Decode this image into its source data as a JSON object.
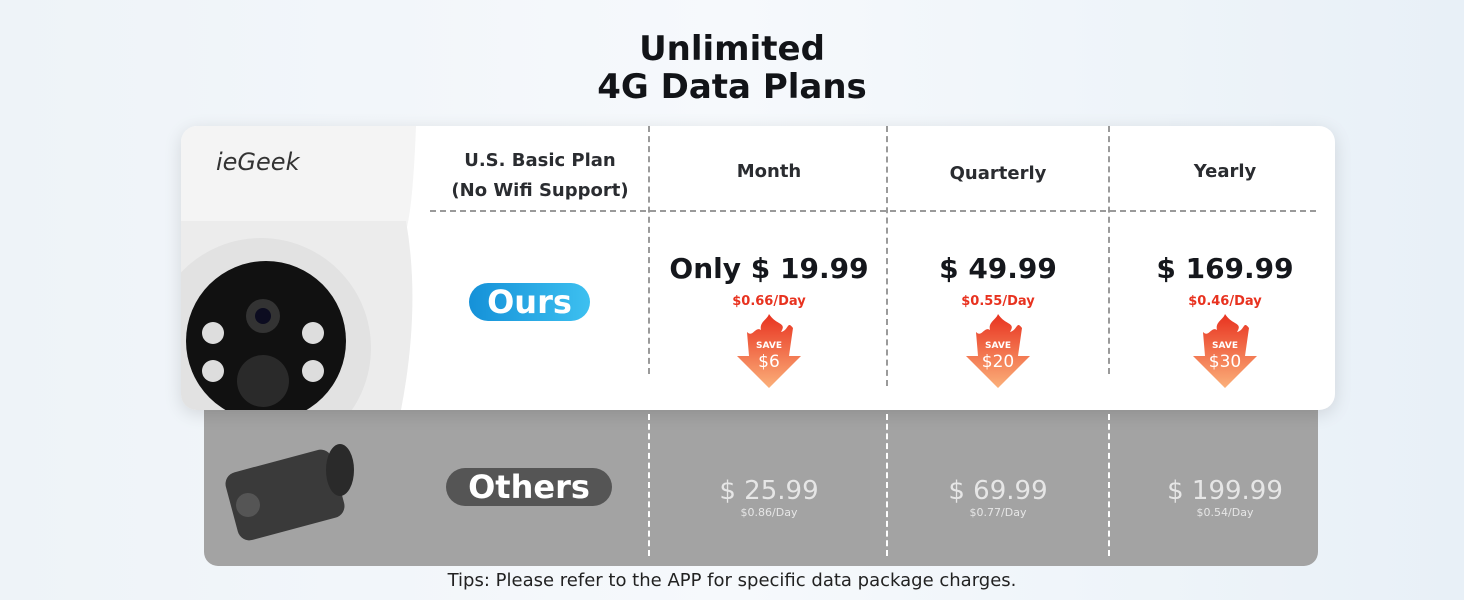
{
  "title": {
    "line1": "Unlimited",
    "line2": "4G Data Plans"
  },
  "brand": "ieGeek",
  "table": {
    "plan_header_line1": "U.S. Basic Plan",
    "plan_header_line2": "(No Wifi Support)",
    "columns": [
      "Month",
      "Quarterly",
      "Yearly"
    ],
    "ours": {
      "label": "Ours",
      "prices": [
        "Only $ 19.99",
        "$ 49.99",
        "$ 169.99"
      ],
      "per_day": [
        "$0.66/Day",
        "$0.55/Day",
        "$0.46/Day"
      ],
      "save_word": "SAVE",
      "savings": [
        "$6",
        "$20",
        "$30"
      ]
    },
    "others": {
      "label": "Others",
      "prices": [
        "$ 25.99",
        "$ 69.99",
        "$ 199.99"
      ],
      "per_day": [
        "$0.86/Day",
        "$0.77/Day",
        "$0.54/Day"
      ]
    }
  },
  "tips": "Tips: Please refer to the APP for specific data package charges.",
  "colors": {
    "ours_pill": "#1a9fe0",
    "others_pill": "#555555",
    "save_red": "#e8321f"
  }
}
